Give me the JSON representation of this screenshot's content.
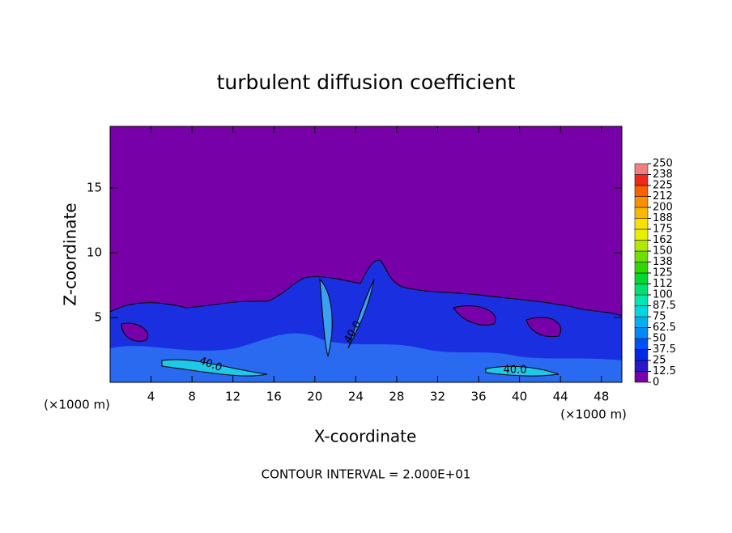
{
  "chart_data": {
    "type": "contour",
    "title": "turbulent diffusion coefficient",
    "x_label": "X-coordinate",
    "y_label": "Z-coordinate",
    "x_unit_left": "(×1000 m)",
    "x_unit_right": "(×1000 m)",
    "footer": "CONTOUR INTERVAL = 2.000E+01",
    "contour_labels": [
      "40.0",
      "40.0",
      "40.0"
    ],
    "xlim": [
      0,
      50
    ],
    "xticks": [
      4,
      8,
      12,
      16,
      20,
      24,
      28,
      32,
      36,
      40,
      44,
      48
    ],
    "ylim": [
      0,
      19.75
    ],
    "yticks": [
      5,
      10,
      15
    ],
    "colorbar_ticks": [
      0,
      12.5,
      25,
      37.5,
      50,
      62.5,
      75,
      87.5,
      100,
      {
        "value": 112.5,
        "label": "112"
      },
      125,
      {
        "value": 137.5,
        "label": "138"
      },
      150,
      {
        "value": 162.5,
        "label": "162"
      },
      175,
      {
        "value": 187.5,
        "label": "188"
      },
      200,
      {
        "value": 212.5,
        "label": "212"
      },
      225,
      {
        "value": 237.5,
        "label": "238"
      },
      250
    ],
    "colorbar_colors": [
      "#7800a8",
      "#2818c8",
      "#0028e8",
      "#0050f8",
      "#0088f8",
      "#00b0f0",
      "#00d8e0",
      "#00e8b0",
      "#00e070",
      "#00d830",
      "#30d800",
      "#70e000",
      "#b0e800",
      "#e8f000",
      "#f8e000",
      "#f8b800",
      "#f89000",
      "#f86000",
      "#f02818",
      "#f08080"
    ]
  }
}
